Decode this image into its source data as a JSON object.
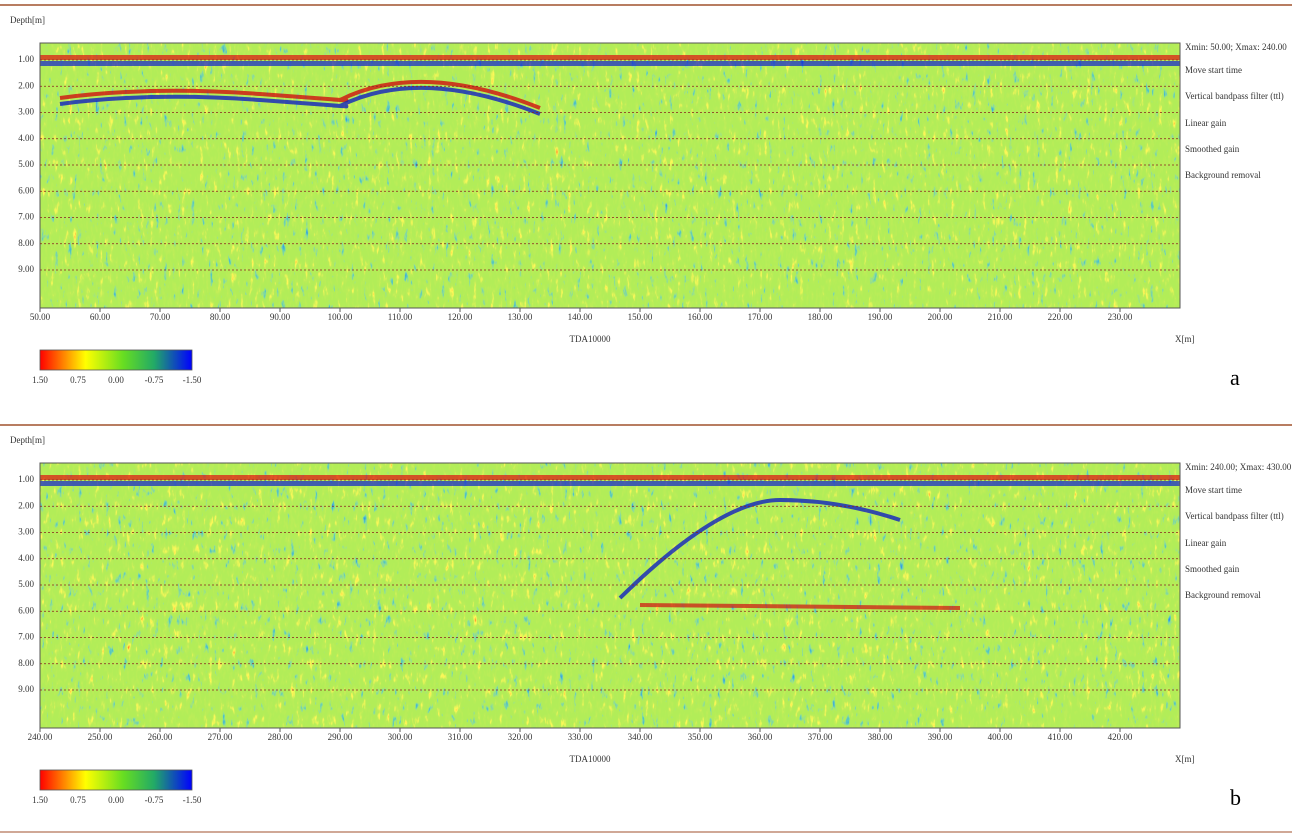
{
  "panels": [
    {
      "y_axis_label": "Depth[m]",
      "depth_ticks": [
        "1.00",
        "2.00",
        "3.00",
        "4.00",
        "5.00",
        "6.00",
        "7.00",
        "8.00",
        "9.00"
      ],
      "x_ticks": [
        "50.00",
        "60.00",
        "70.00",
        "80.00",
        "90.00",
        "100.00",
        "110.00",
        "120.00",
        "130.00",
        "140.00",
        "150.00",
        "160.00",
        "170.00",
        "180.00",
        "190.00",
        "200.00",
        "210.00",
        "220.00",
        "230.00"
      ],
      "profile_name": "TDA10000",
      "x_axis_label": "X[m]",
      "range_text": "Xmin:   50.00; Xmax:   240.00",
      "processing_steps": [
        "Move start time",
        "Vertical bandpass filter (ttl)",
        "Linear gain",
        "Smoothed gain",
        "Background removal"
      ],
      "colorbar_ticks": [
        "1.50",
        "0.75",
        "0.00",
        "-0.75",
        "-1.50"
      ],
      "panel_label": "a"
    },
    {
      "y_axis_label": "Depth[m]",
      "depth_ticks": [
        "1.00",
        "2.00",
        "3.00",
        "4.00",
        "5.00",
        "6.00",
        "7.00",
        "8.00",
        "9.00"
      ],
      "x_ticks": [
        "240.00",
        "250.00",
        "260.00",
        "270.00",
        "280.00",
        "290.00",
        "300.00",
        "310.00",
        "320.00",
        "330.00",
        "340.00",
        "350.00",
        "360.00",
        "370.00",
        "380.00",
        "390.00",
        "400.00",
        "410.00",
        "420.00"
      ],
      "profile_name": "TDA10000",
      "x_axis_label": "X[m]",
      "range_text": "Xmin:   240.00; Xmax:   430.00",
      "processing_steps": [
        "Move start time",
        "Vertical bandpass filter (ttl)",
        "Linear gain",
        "Smoothed gain",
        "Background removal"
      ],
      "colorbar_ticks": [
        "1.50",
        "0.75",
        "0.00",
        "-0.75",
        "-1.50"
      ],
      "panel_label": "b"
    }
  ]
}
